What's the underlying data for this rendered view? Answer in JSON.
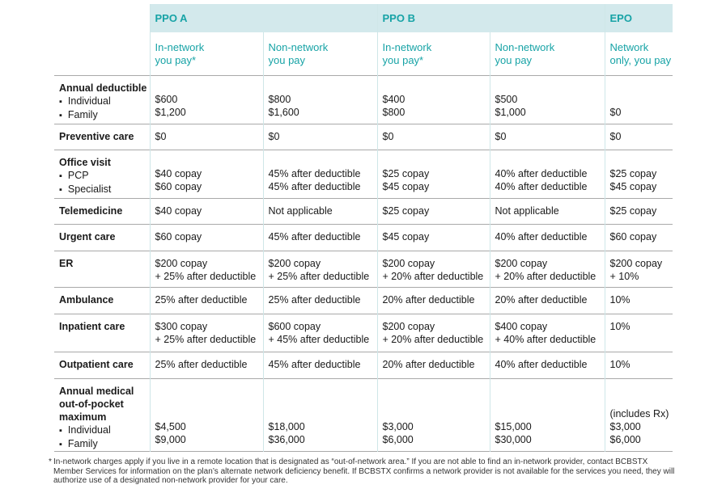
{
  "plans": [
    {
      "name": "PPO A",
      "columns": [
        {
          "line1": "In-network",
          "line2": "you pay*"
        },
        {
          "line1": "Non-network",
          "line2": "you pay"
        }
      ]
    },
    {
      "name": "PPO B",
      "columns": [
        {
          "line1": "In-network",
          "line2": "you pay*"
        },
        {
          "line1": "Non-network",
          "line2": "you pay"
        }
      ]
    },
    {
      "name": "EPO",
      "columns": [
        {
          "line1": "Network",
          "line2": "only, you pay"
        }
      ]
    }
  ],
  "rows": [
    {
      "title": [
        "Annual deductible"
      ],
      "subs": [
        "Individual",
        "Family"
      ],
      "values": [
        [
          "$600",
          "$1,200"
        ],
        [
          "$800",
          "$1,600"
        ],
        [
          "$400",
          "$800"
        ],
        [
          "$500",
          "$1,000"
        ],
        [
          "$0"
        ]
      ]
    },
    {
      "title": [
        "Preventive care"
      ],
      "subs": [],
      "values": [
        [
          "$0"
        ],
        [
          "$0"
        ],
        [
          "$0"
        ],
        [
          "$0"
        ],
        [
          "$0"
        ]
      ]
    },
    {
      "title": [
        "Office visit"
      ],
      "subs": [
        "PCP",
        "Specialist"
      ],
      "values": [
        [
          "$40 copay",
          "$60 copay"
        ],
        [
          "45% after deductible",
          "45% after deductible"
        ],
        [
          "$25 copay",
          "$45 copay"
        ],
        [
          "40% after deductible",
          "40% after deductible"
        ],
        [
          "$25 copay",
          "$45 copay"
        ]
      ]
    },
    {
      "title": [
        "Telemedicine"
      ],
      "subs": [],
      "values": [
        [
          "$40 copay"
        ],
        [
          "Not applicable"
        ],
        [
          "$25 copay"
        ],
        [
          "Not applicable"
        ],
        [
          "$25 copay"
        ]
      ]
    },
    {
      "title": [
        "Urgent care"
      ],
      "subs": [],
      "values": [
        [
          "$60 copay"
        ],
        [
          "45% after deductible"
        ],
        [
          "$45 copay"
        ],
        [
          "40% after deductible"
        ],
        [
          "$60 copay"
        ]
      ]
    },
    {
      "title": [
        "ER"
      ],
      "subs": [],
      "values": [
        [
          "$200 copay",
          "+ 25% after deductible"
        ],
        [
          "$200 copay",
          "+ 25% after deductible"
        ],
        [
          "$200 copay",
          "+ 20% after deductible"
        ],
        [
          "$200 copay",
          "+ 20% after deductible"
        ],
        [
          "$200 copay",
          "+ 10%"
        ]
      ]
    },
    {
      "title": [
        "Ambulance"
      ],
      "subs": [],
      "values": [
        [
          "25% after deductible"
        ],
        [
          "25% after deductible"
        ],
        [
          "20% after deductible"
        ],
        [
          "20% after deductible"
        ],
        [
          "10%"
        ]
      ]
    },
    {
      "title": [
        "Inpatient care"
      ],
      "subs": [],
      "values": [
        [
          "$300 copay",
          "+ 25% after deductible"
        ],
        [
          "$600 copay",
          "+ 45% after deductible"
        ],
        [
          "$200 copay",
          "+ 20% after deductible"
        ],
        [
          "$400 copay",
          "+ 40% after deductible"
        ],
        [
          "10%"
        ]
      ]
    },
    {
      "title": [
        "Outpatient care"
      ],
      "subs": [],
      "values": [
        [
          "25% after deductible"
        ],
        [
          "45% after deductible"
        ],
        [
          "20% after deductible"
        ],
        [
          "40% after deductible"
        ],
        [
          "10%"
        ]
      ]
    },
    {
      "title": [
        "Annual medical",
        "out-of-pocket",
        "maximum"
      ],
      "subs": [
        "Individual",
        "Family"
      ],
      "values": [
        [
          "$4,500",
          "$9,000"
        ],
        [
          "$18,000",
          "$36,000"
        ],
        [
          "$3,000",
          "$6,000"
        ],
        [
          "$15,000",
          "$30,000"
        ],
        [
          "(includes Rx)",
          "$3,000",
          "$6,000"
        ]
      ]
    }
  ],
  "footnote": {
    "marker": "*",
    "text": "In-network charges apply if you live in a remote location that is designated as “out-of-network area.” If you are not able to find an in-network provider, contact BCBSTX Member Services for information on the plan’s alternate network deficiency benefit. If BCBSTX confirms a network provider is not available for the services you need, they will authorize use of a designated non-network provider for your care."
  },
  "colors": {
    "accent": "#17a3a6",
    "header_bg": "#d3e9ec",
    "rule": "#a9a9a9"
  }
}
